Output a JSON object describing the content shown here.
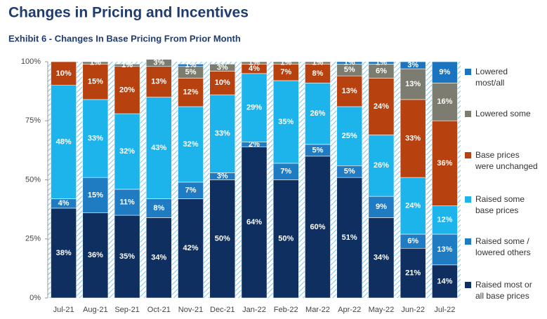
{
  "chart_data": {
    "type": "stacked-bar",
    "title": "Changes in Pricing and Incentives",
    "subtitle": "Exhibit 6 - Changes In Base Pricing From Prior Month",
    "categories": [
      "Jul-21",
      "Aug-21",
      "Sep-21",
      "Oct-21",
      "Nov-21",
      "Dec-21",
      "Jan-22",
      "Feb-22",
      "Mar-22",
      "Apr-22",
      "May-22",
      "Jun-22",
      "Jul-22"
    ],
    "ylim": [
      0,
      100
    ],
    "yticks": [
      {
        "value": 0,
        "label": "0%"
      },
      {
        "value": 25,
        "label": "25%"
      },
      {
        "value": 50,
        "label": "50%"
      },
      {
        "value": 75,
        "label": "75%"
      },
      {
        "value": 100,
        "label": "100%"
      }
    ],
    "series": [
      {
        "name": "Raised most or all base prices",
        "color": "#0e2f5f",
        "values": [
          38,
          36,
          35,
          34,
          42,
          50,
          64,
          50,
          60,
          51,
          34,
          21,
          14
        ],
        "value_labels": [
          "38%",
          "36%",
          "35%",
          "34%",
          "42%",
          "50%",
          "64%",
          "50%",
          "60%",
          "51%",
          "34%",
          "21%",
          "14%"
        ]
      },
      {
        "name": "Raised some / lowered others",
        "color": "#1f7cc3",
        "values": [
          4,
          15,
          11,
          8,
          7,
          3,
          2,
          7,
          5,
          5,
          9,
          6,
          13
        ],
        "value_labels": [
          "4%",
          "15%",
          "11%",
          "8%",
          "7%",
          "3%",
          "2%",
          "7%",
          "5%",
          "5%",
          "9%",
          "6%",
          "13%"
        ]
      },
      {
        "name": "Raised some base prices",
        "color": "#1db4ec",
        "values": [
          48,
          33,
          32,
          43,
          32,
          33,
          29,
          35,
          26,
          25,
          26,
          24,
          12
        ],
        "value_labels": [
          "48%",
          "33%",
          "32%",
          "43%",
          "32%",
          "33%",
          "29%",
          "35%",
          "26%",
          "25%",
          "26%",
          "24%",
          "12%"
        ]
      },
      {
        "name": "Base prices were unchanged",
        "color": "#b7420f",
        "values": [
          10,
          15,
          20,
          13,
          12,
          10,
          4,
          7,
          8,
          13,
          24,
          33,
          36
        ],
        "value_labels": [
          "10%",
          "15%",
          "20%",
          "13%",
          "12%",
          "10%",
          "4%",
          "7%",
          "8%",
          "13%",
          "24%",
          "33%",
          "36%"
        ]
      },
      {
        "name": "Lowered some",
        "color": "#7c7c71",
        "values": [
          null,
          1,
          1,
          3,
          5,
          3,
          1,
          1,
          1,
          5,
          6,
          13,
          16
        ],
        "value_labels": [
          null,
          "1%",
          "1%",
          "3%",
          "5%",
          "3%",
          "1%",
          "1%",
          "1%",
          "5%",
          "6%",
          "13%",
          "16%"
        ]
      },
      {
        "name": "Lowered most/all",
        "color": "#1a74c0",
        "values": [
          null,
          null,
          null,
          null,
          1,
          null,
          null,
          null,
          null,
          1,
          1,
          3,
          9
        ],
        "value_labels": [
          null,
          null,
          null,
          null,
          "1%",
          null,
          null,
          null,
          null,
          "1%",
          "1%",
          "3%",
          "9%"
        ]
      }
    ]
  }
}
